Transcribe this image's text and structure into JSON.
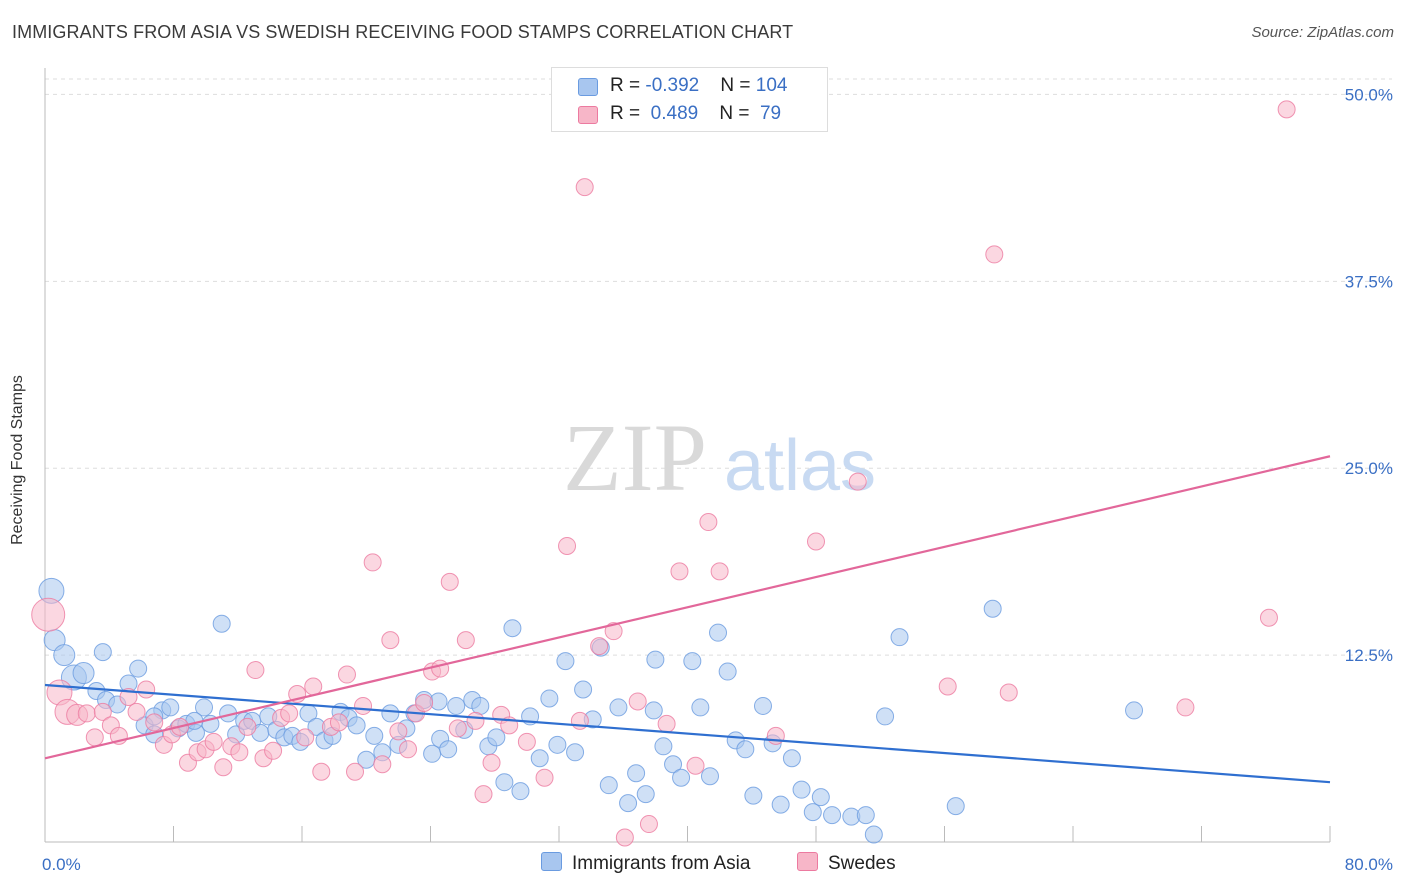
{
  "title": "IMMIGRANTS FROM ASIA VS SWEDISH RECEIVING FOOD STAMPS CORRELATION CHART",
  "source": "Source: ZipAtlas.com",
  "watermark": {
    "zip": "ZIP",
    "atlas": "atlas"
  },
  "legend_top": [
    {
      "r_label": "R = ",
      "r_value": "-0.392",
      "n_label": "N = ",
      "n_value": "104",
      "color": "#a8c6ef"
    },
    {
      "r_label": "R = ",
      "r_value": " 0.489",
      "n_label": "N = ",
      "n_value": " 79",
      "color": "#f7b6c8"
    }
  ],
  "chart_data": {
    "type": "scatter",
    "title": "IMMIGRANTS FROM ASIA VS SWEDISH RECEIVING FOOD STAMPS CORRELATION CHART",
    "xlabel": "",
    "ylabel": "Receiving Food Stamps",
    "xlim": [
      0,
      80
    ],
    "ylim": [
      0,
      51.5
    ],
    "x_tick_labels": [
      {
        "value": 0,
        "label": "0.0%"
      },
      {
        "value": 80,
        "label": "80.0%"
      }
    ],
    "y_tick_labels": [
      {
        "value": 12.5,
        "label": "12.5%"
      },
      {
        "value": 25.0,
        "label": "25.0%"
      },
      {
        "value": 37.5,
        "label": "37.5%"
      },
      {
        "value": 50.0,
        "label": "50.0%"
      }
    ],
    "grid": true,
    "legend_position": "bottom",
    "series": [
      {
        "name": "Immigrants from Asia",
        "color": "#6a9be0",
        "fill": "#a8c6ef",
        "trend": {
          "x": [
            0,
            80
          ],
          "y": [
            10.5,
            4.0
          ]
        },
        "points": [
          [
            0.4,
            16.8,
            3
          ],
          [
            0.6,
            13.5,
            2.5
          ],
          [
            1.2,
            12.5,
            2.5
          ],
          [
            1.8,
            11.0,
            3
          ],
          [
            2.4,
            11.3,
            2.5
          ],
          [
            3.2,
            10.1,
            2
          ],
          [
            3.8,
            9.5,
            2
          ],
          [
            4.5,
            9.2,
            2
          ],
          [
            5.2,
            10.6,
            2
          ],
          [
            5.8,
            11.6,
            2
          ],
          [
            6.2,
            7.8,
            2
          ],
          [
            6.8,
            7.2,
            2
          ],
          [
            7.3,
            8.8,
            2
          ],
          [
            7.8,
            9.0,
            2
          ],
          [
            8.3,
            7.6,
            2
          ],
          [
            8.8,
            7.9,
            2
          ],
          [
            9.4,
            7.3,
            2
          ],
          [
            9.9,
            9.0,
            2
          ],
          [
            10.3,
            7.9,
            2
          ],
          [
            11.0,
            14.6,
            2
          ],
          [
            11.4,
            8.6,
            2
          ],
          [
            11.9,
            7.2,
            2
          ],
          [
            12.4,
            8.1,
            2
          ],
          [
            12.9,
            8.1,
            2
          ],
          [
            13.4,
            7.3,
            2
          ],
          [
            13.9,
            8.4,
            2
          ],
          [
            14.4,
            7.5,
            2
          ],
          [
            14.9,
            7.0,
            2
          ],
          [
            15.4,
            7.1,
            2
          ],
          [
            15.9,
            6.7,
            2
          ],
          [
            16.4,
            8.6,
            2
          ],
          [
            16.9,
            7.7,
            2
          ],
          [
            17.4,
            6.8,
            2
          ],
          [
            17.9,
            7.1,
            2
          ],
          [
            18.4,
            8.7,
            2
          ],
          [
            18.9,
            8.3,
            2
          ],
          [
            19.4,
            7.8,
            2
          ],
          [
            20.0,
            5.5,
            2
          ],
          [
            20.5,
            7.1,
            2
          ],
          [
            21.0,
            6.0,
            2
          ],
          [
            21.5,
            8.6,
            2
          ],
          [
            22.0,
            6.5,
            2
          ],
          [
            22.5,
            7.6,
            2
          ],
          [
            23.0,
            8.6,
            2
          ],
          [
            23.6,
            9.5,
            2
          ],
          [
            24.1,
            5.9,
            2
          ],
          [
            24.6,
            6.9,
            2
          ],
          [
            25.1,
            6.2,
            2
          ],
          [
            25.6,
            9.1,
            2
          ],
          [
            26.1,
            7.5,
            2
          ],
          [
            26.6,
            9.5,
            2
          ],
          [
            27.1,
            9.1,
            2
          ],
          [
            27.6,
            6.4,
            2
          ],
          [
            28.1,
            7.0,
            2
          ],
          [
            28.6,
            4.0,
            2
          ],
          [
            29.1,
            14.3,
            2
          ],
          [
            29.6,
            3.4,
            2
          ],
          [
            30.2,
            8.4,
            2
          ],
          [
            30.8,
            5.6,
            2
          ],
          [
            31.4,
            9.6,
            2
          ],
          [
            31.9,
            6.5,
            2
          ],
          [
            32.4,
            12.1,
            2
          ],
          [
            33.0,
            6.0,
            2
          ],
          [
            33.5,
            10.2,
            2
          ],
          [
            34.1,
            8.2,
            2
          ],
          [
            34.6,
            13.0,
            2
          ],
          [
            35.1,
            3.8,
            2
          ],
          [
            35.7,
            9.0,
            2
          ],
          [
            36.3,
            2.6,
            2
          ],
          [
            36.8,
            4.6,
            2
          ],
          [
            37.4,
            3.2,
            2
          ],
          [
            38.0,
            12.2,
            2
          ],
          [
            38.5,
            6.4,
            2
          ],
          [
            39.1,
            5.2,
            2
          ],
          [
            39.6,
            4.3,
            2
          ],
          [
            40.3,
            12.1,
            2
          ],
          [
            40.8,
            9.0,
            2
          ],
          [
            41.4,
            4.4,
            2
          ],
          [
            41.9,
            14.0,
            2
          ],
          [
            42.5,
            11.4,
            2
          ],
          [
            43.0,
            6.8,
            2
          ],
          [
            43.6,
            6.2,
            2
          ],
          [
            44.1,
            3.1,
            2
          ],
          [
            44.7,
            9.1,
            2
          ],
          [
            45.3,
            6.6,
            2
          ],
          [
            45.8,
            2.5,
            2
          ],
          [
            46.5,
            5.6,
            2
          ],
          [
            47.1,
            3.5,
            2
          ],
          [
            47.8,
            2.0,
            2
          ],
          [
            48.3,
            3.0,
            2
          ],
          [
            49.0,
            1.8,
            2
          ],
          [
            50.2,
            1.7,
            2
          ],
          [
            51.1,
            1.8,
            2
          ],
          [
            51.6,
            0.5,
            2
          ],
          [
            52.3,
            8.4,
            2
          ],
          [
            53.2,
            13.7,
            2
          ],
          [
            56.7,
            2.4,
            2
          ],
          [
            59.0,
            15.6,
            2
          ],
          [
            67.8,
            8.8,
            2
          ],
          [
            3.6,
            12.7,
            2
          ],
          [
            6.8,
            8.4,
            2
          ],
          [
            9.3,
            8.1,
            2
          ],
          [
            24.5,
            9.4,
            2
          ],
          [
            37.9,
            8.8,
            2
          ]
        ]
      },
      {
        "name": "Swedes",
        "color": "#ec7aa0",
        "fill": "#f7b6c8",
        "trend": {
          "x": [
            0,
            80
          ],
          "y": [
            5.6,
            25.8
          ]
        },
        "points": [
          [
            0.2,
            15.2,
            4
          ],
          [
            0.9,
            10.0,
            3
          ],
          [
            1.4,
            8.7,
            3
          ],
          [
            2.0,
            8.5,
            2.5
          ],
          [
            2.6,
            8.6,
            2
          ],
          [
            3.1,
            7.0,
            2
          ],
          [
            3.6,
            8.7,
            2
          ],
          [
            4.1,
            7.8,
            2
          ],
          [
            4.6,
            7.1,
            2
          ],
          [
            5.2,
            9.7,
            2
          ],
          [
            5.7,
            8.7,
            2
          ],
          [
            6.3,
            10.2,
            2
          ],
          [
            6.8,
            8.0,
            2
          ],
          [
            7.4,
            6.5,
            2
          ],
          [
            7.9,
            7.2,
            2
          ],
          [
            8.4,
            7.7,
            2
          ],
          [
            8.9,
            5.3,
            2
          ],
          [
            9.5,
            6.0,
            2
          ],
          [
            10.0,
            6.2,
            2
          ],
          [
            10.5,
            6.7,
            2
          ],
          [
            11.1,
            5.0,
            2
          ],
          [
            11.6,
            6.4,
            2
          ],
          [
            12.1,
            6.0,
            2
          ],
          [
            12.6,
            7.7,
            2
          ],
          [
            13.1,
            11.5,
            2
          ],
          [
            13.6,
            5.6,
            2
          ],
          [
            14.2,
            6.1,
            2
          ],
          [
            14.7,
            8.3,
            2
          ],
          [
            15.2,
            8.6,
            2
          ],
          [
            15.7,
            9.9,
            2
          ],
          [
            16.2,
            7.0,
            2
          ],
          [
            16.7,
            10.4,
            2
          ],
          [
            17.2,
            4.7,
            2
          ],
          [
            17.8,
            7.7,
            2
          ],
          [
            18.3,
            8.0,
            2
          ],
          [
            18.8,
            11.2,
            2
          ],
          [
            19.3,
            4.7,
            2
          ],
          [
            19.8,
            9.1,
            2
          ],
          [
            20.4,
            18.7,
            2
          ],
          [
            21.0,
            5.2,
            2
          ],
          [
            21.5,
            13.5,
            2
          ],
          [
            22.0,
            7.4,
            2
          ],
          [
            22.6,
            6.2,
            2
          ],
          [
            23.1,
            8.6,
            2
          ],
          [
            23.6,
            9.3,
            2
          ],
          [
            24.1,
            11.4,
            2
          ],
          [
            24.6,
            11.6,
            2
          ],
          [
            25.2,
            17.4,
            2
          ],
          [
            25.7,
            7.6,
            2
          ],
          [
            26.2,
            13.5,
            2
          ],
          [
            26.8,
            8.1,
            2
          ],
          [
            27.3,
            3.2,
            2
          ],
          [
            27.8,
            5.3,
            2
          ],
          [
            28.4,
            8.5,
            2
          ],
          [
            28.9,
            7.8,
            2
          ],
          [
            30.0,
            6.7,
            2
          ],
          [
            31.1,
            4.3,
            2
          ],
          [
            32.5,
            19.8,
            2
          ],
          [
            33.3,
            8.1,
            2
          ],
          [
            34.5,
            13.1,
            2
          ],
          [
            35.4,
            14.1,
            2
          ],
          [
            36.1,
            0.3,
            2
          ],
          [
            36.9,
            9.4,
            2
          ],
          [
            37.6,
            1.2,
            2
          ],
          [
            38.7,
            7.9,
            2
          ],
          [
            39.5,
            18.1,
            2
          ],
          [
            40.5,
            5.1,
            2
          ],
          [
            41.3,
            21.4,
            2
          ],
          [
            42.0,
            18.1,
            2
          ],
          [
            45.5,
            7.1,
            2
          ],
          [
            48.0,
            20.1,
            2
          ],
          [
            50.6,
            24.1,
            2
          ],
          [
            56.2,
            10.4,
            2
          ],
          [
            59.1,
            39.3,
            2
          ],
          [
            60.0,
            10.0,
            2
          ],
          [
            71.0,
            9.0,
            2
          ],
          [
            76.2,
            15.0,
            2
          ],
          [
            77.3,
            49.0,
            2
          ],
          [
            33.6,
            43.8,
            2
          ]
        ]
      }
    ]
  }
}
